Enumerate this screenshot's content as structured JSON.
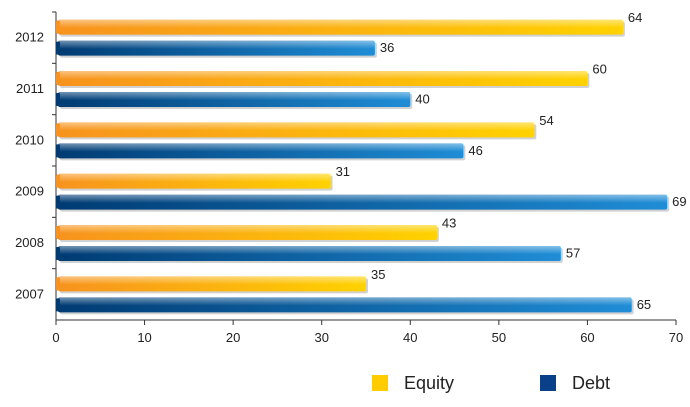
{
  "chart_data": {
    "type": "bar",
    "orientation": "horizontal",
    "categories": [
      "2012",
      "2011",
      "2010",
      "2009",
      "2008",
      "2007"
    ],
    "series": [
      {
        "name": "Equity",
        "values": [
          64,
          60,
          54,
          31,
          43,
          35
        ],
        "color": "#FFD200",
        "gradient_start": "#F7931E"
      },
      {
        "name": "Debt",
        "values": [
          36,
          40,
          46,
          69,
          57,
          65
        ],
        "color": "#1F8DD6",
        "gradient_start": "#003B73"
      }
    ],
    "x_ticks": [
      "0",
      "10",
      "20",
      "30",
      "40",
      "50",
      "60",
      "70"
    ],
    "xlim": [
      0,
      70
    ],
    "grid": false,
    "legend_position": "bottom-right",
    "data_labels": true,
    "title": "",
    "xlabel": "",
    "ylabel": ""
  }
}
